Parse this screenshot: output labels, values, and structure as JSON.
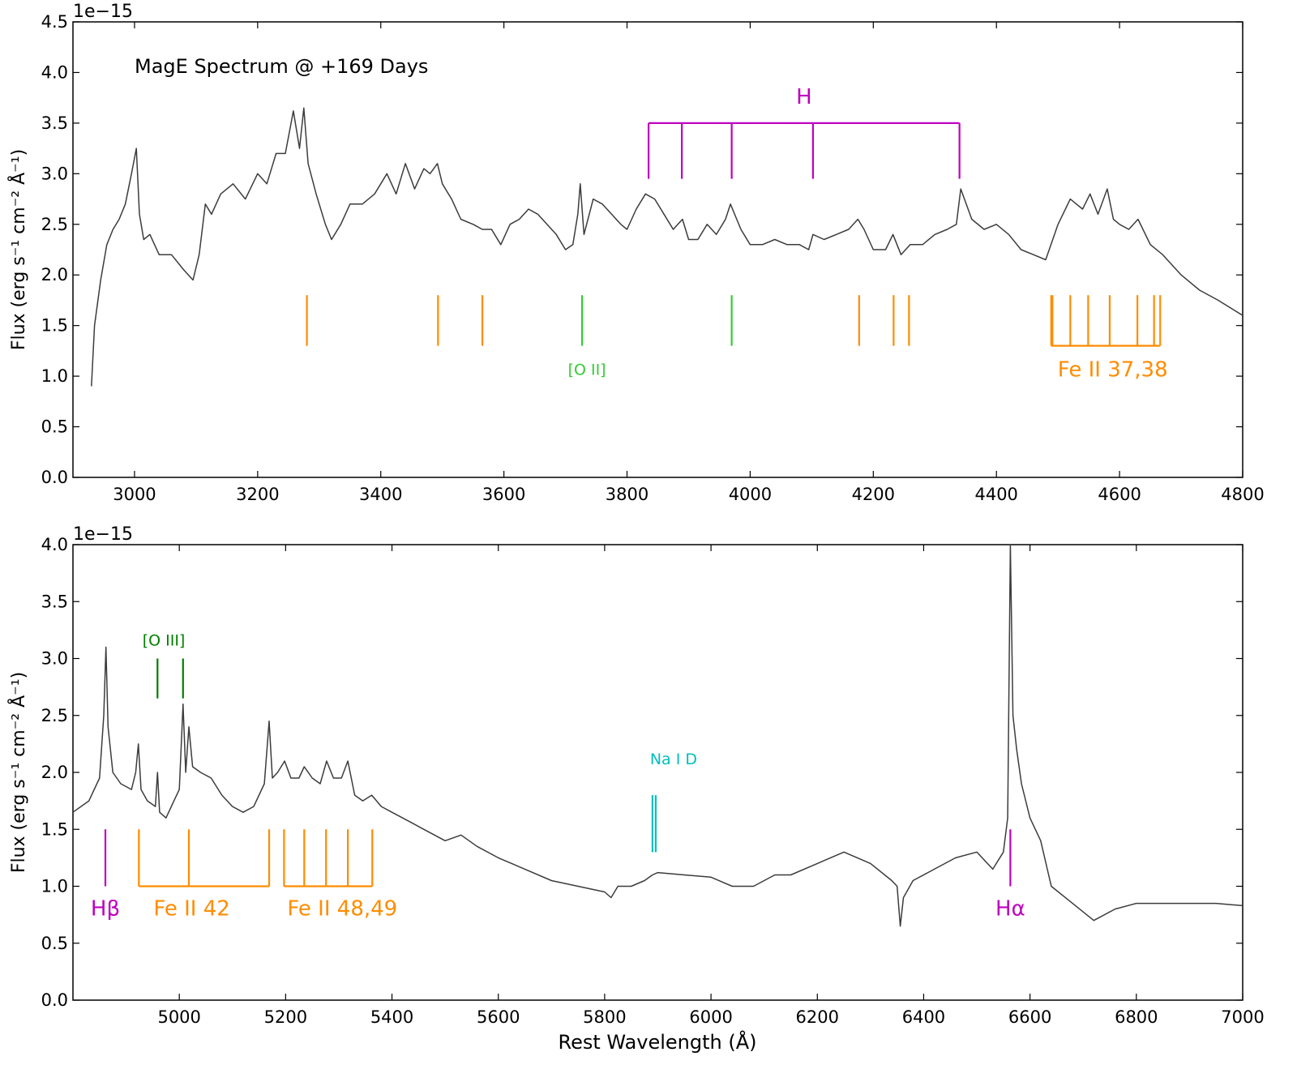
{
  "chart_data": [
    {
      "type": "line",
      "title": "MagE Spectrum @ +169 Days",
      "xlabel": "",
      "ylabel": "Flux (erg s⁻¹ cm⁻² Å⁻¹)",
      "y_scale_label": "1e−15",
      "xlim": [
        2900,
        4800
      ],
      "ylim": [
        0,
        4.5
      ],
      "x_ticks": [
        3000,
        3200,
        3400,
        3600,
        3800,
        4000,
        4200,
        4400,
        4600,
        4800
      ],
      "y_ticks": [
        0.0,
        0.5,
        1.0,
        1.5,
        2.0,
        2.5,
        3.0,
        3.5,
        4.0,
        4.5
      ],
      "series": [
        {
          "name": "spectrum",
          "color": "#3c3c3c",
          "x": [
            2930,
            2935,
            2945,
            2955,
            2965,
            2975,
            2985,
            2995,
            3003,
            3008,
            3015,
            3025,
            3040,
            3060,
            3080,
            3095,
            3105,
            3115,
            3125,
            3140,
            3160,
            3180,
            3200,
            3215,
            3230,
            3245,
            3258,
            3268,
            3275,
            3282,
            3295,
            3310,
            3320,
            3335,
            3350,
            3370,
            3390,
            3410,
            3425,
            3440,
            3455,
            3470,
            3480,
            3492,
            3500,
            3515,
            3530,
            3550,
            3565,
            3580,
            3595,
            3610,
            3625,
            3640,
            3655,
            3670,
            3685,
            3700,
            3712,
            3720,
            3724,
            3730,
            3745,
            3760,
            3775,
            3790,
            3800,
            3815,
            3830,
            3845,
            3860,
            3875,
            3890,
            3900,
            3915,
            3930,
            3945,
            3960,
            3968,
            3985,
            4000,
            4020,
            4040,
            4060,
            4080,
            4095,
            4102,
            4120,
            4140,
            4160,
            4175,
            4185,
            4200,
            4220,
            4232,
            4245,
            4260,
            4280,
            4300,
            4320,
            4335,
            4342,
            4360,
            4380,
            4400,
            4420,
            4440,
            4460,
            4480,
            4500,
            4520,
            4540,
            4552,
            4565,
            4580,
            4590,
            4600,
            4615,
            4630,
            4650,
            4670,
            4700,
            4730,
            4760,
            4800
          ],
          "values": [
            0.9,
            1.5,
            1.95,
            2.3,
            2.45,
            2.55,
            2.7,
            3.0,
            3.25,
            2.6,
            2.35,
            2.4,
            2.2,
            2.2,
            2.05,
            1.95,
            2.2,
            2.7,
            2.6,
            2.8,
            2.9,
            2.75,
            3.0,
            2.9,
            3.2,
            3.2,
            3.62,
            3.25,
            3.65,
            3.1,
            2.8,
            2.5,
            2.35,
            2.5,
            2.7,
            2.7,
            2.8,
            3.0,
            2.8,
            3.1,
            2.85,
            3.05,
            3.0,
            3.1,
            2.9,
            2.75,
            2.55,
            2.5,
            2.45,
            2.45,
            2.3,
            2.5,
            2.55,
            2.65,
            2.6,
            2.5,
            2.4,
            2.25,
            2.3,
            2.6,
            2.9,
            2.4,
            2.75,
            2.7,
            2.6,
            2.5,
            2.45,
            2.65,
            2.8,
            2.75,
            2.6,
            2.45,
            2.55,
            2.35,
            2.35,
            2.5,
            2.4,
            2.55,
            2.7,
            2.45,
            2.3,
            2.3,
            2.35,
            2.3,
            2.3,
            2.25,
            2.4,
            2.35,
            2.4,
            2.45,
            2.55,
            2.45,
            2.25,
            2.25,
            2.4,
            2.2,
            2.3,
            2.3,
            2.4,
            2.45,
            2.5,
            2.85,
            2.55,
            2.45,
            2.5,
            2.4,
            2.25,
            2.2,
            2.15,
            2.5,
            2.75,
            2.65,
            2.8,
            2.6,
            2.85,
            2.55,
            2.5,
            2.45,
            2.55,
            2.3,
            2.2,
            2.0,
            1.85,
            1.75,
            1.6
          ]
        }
      ],
      "annotations": [
        {
          "label": "H",
          "color": "#bf00bf",
          "lines_x": [
            3835,
            3889,
            3970,
            4102,
            4340
          ],
          "y_bottom": 2.95,
          "y_top": 3.5,
          "bracket": "top"
        },
        {
          "label": "",
          "color": "#ff8c00",
          "lines_x": [
            3280,
            3493,
            3565,
            4177,
            4233,
            4258
          ],
          "y_bottom": 1.3,
          "y_top": 1.8
        },
        {
          "label": "[O II]",
          "color": "#33cc33",
          "lines_x": [
            3727,
            3970
          ],
          "y_bottom": 1.3,
          "y_top": 1.8
        },
        {
          "label": "Fe II 37,38",
          "color": "#ff8c00",
          "lines_x": [
            4489,
            4491,
            4520,
            4549,
            4584,
            4629,
            4656,
            4666
          ],
          "y_bottom": 1.3,
          "y_top": 1.8,
          "bracket": "bottom"
        }
      ]
    },
    {
      "type": "line",
      "title": "",
      "xlabel": "Rest Wavelength (Å)",
      "ylabel": "Flux (erg s⁻¹ cm⁻² Å⁻¹)",
      "y_scale_label": "1e−15",
      "xlim": [
        4800,
        7000
      ],
      "ylim": [
        0,
        4.0
      ],
      "x_ticks": [
        5000,
        5200,
        5400,
        5600,
        5800,
        6000,
        6200,
        6400,
        6600,
        6800,
        7000
      ],
      "y_ticks": [
        0.0,
        0.5,
        1.0,
        1.5,
        2.0,
        2.5,
        3.0,
        3.5,
        4.0
      ],
      "series": [
        {
          "name": "spectrum",
          "color": "#3c3c3c",
          "x": [
            4800,
            4830,
            4850,
            4858,
            4862,
            4866,
            4875,
            4890,
            4910,
            4918,
            4923,
            4928,
            4940,
            4955,
            4959,
            4963,
            4975,
            4990,
            5000,
            5007,
            5012,
            5018,
            5025,
            5040,
            5060,
            5080,
            5100,
            5120,
            5140,
            5160,
            5169,
            5175,
            5185,
            5198,
            5210,
            5225,
            5235,
            5250,
            5265,
            5277,
            5290,
            5305,
            5317,
            5330,
            5345,
            5362,
            5380,
            5400,
            5420,
            5440,
            5460,
            5480,
            5500,
            5530,
            5560,
            5600,
            5650,
            5700,
            5750,
            5800,
            5812,
            5825,
            5850,
            5875,
            5890,
            5900,
            5950,
            6000,
            6040,
            6080,
            6120,
            6150,
            6200,
            6250,
            6300,
            6340,
            6350,
            6356,
            6362,
            6380,
            6420,
            6460,
            6500,
            6530,
            6550,
            6558,
            6563,
            6568,
            6575,
            6584,
            6600,
            6620,
            6640,
            6680,
            6720,
            6760,
            6800,
            6850,
            6900,
            6950,
            7000
          ],
          "values": [
            1.65,
            1.75,
            1.95,
            2.5,
            3.1,
            2.4,
            2.0,
            1.9,
            1.85,
            2.0,
            2.25,
            1.85,
            1.75,
            1.7,
            2.0,
            1.65,
            1.6,
            1.75,
            1.85,
            2.6,
            2.0,
            2.4,
            2.05,
            2.0,
            1.95,
            1.8,
            1.7,
            1.65,
            1.7,
            1.9,
            2.45,
            1.95,
            2.0,
            2.1,
            1.95,
            1.95,
            2.05,
            1.95,
            1.9,
            2.1,
            1.95,
            1.95,
            2.1,
            1.8,
            1.75,
            1.8,
            1.7,
            1.65,
            1.6,
            1.55,
            1.5,
            1.45,
            1.4,
            1.45,
            1.35,
            1.25,
            1.15,
            1.05,
            1.0,
            0.95,
            0.9,
            1.0,
            1.0,
            1.05,
            1.1,
            1.12,
            1.1,
            1.08,
            1.0,
            1.0,
            1.1,
            1.1,
            1.2,
            1.3,
            1.2,
            1.05,
            1.0,
            0.65,
            0.9,
            1.05,
            1.15,
            1.25,
            1.3,
            1.15,
            1.3,
            1.6,
            4.0,
            2.5,
            2.2,
            1.9,
            1.6,
            1.4,
            1.0,
            0.85,
            0.7,
            0.8,
            0.85,
            0.85,
            0.85,
            0.85,
            0.83
          ]
        }
      ],
      "annotations": [
        {
          "label": "Hβ",
          "color": "#bf00bf",
          "lines_x": [
            4861
          ],
          "y_bottom": 1.0,
          "y_top": 1.5
        },
        {
          "label": "[O III]",
          "color": "#007f00",
          "lines_x": [
            4959,
            5007
          ],
          "y_bottom": 2.65,
          "y_top": 3.0
        },
        {
          "label": "Fe II 42",
          "color": "#ff8c00",
          "lines_x": [
            4924,
            5018,
            5169
          ],
          "y_bottom": 1.0,
          "y_top": 1.5,
          "bracket": "bottom"
        },
        {
          "label": "Fe II 48,49",
          "color": "#ff8c00",
          "lines_x": [
            5197,
            5235,
            5276,
            5317,
            5363
          ],
          "y_bottom": 1.0,
          "y_top": 1.5,
          "bracket": "bottom"
        },
        {
          "label": "Na I D",
          "color": "#00bfbf",
          "lines_x": [
            5890,
            5896
          ],
          "y_bottom": 1.3,
          "y_top": 1.8
        },
        {
          "label": "Hα",
          "color": "#bf00bf",
          "lines_x": [
            6563
          ],
          "y_bottom": 1.0,
          "y_top": 1.5
        }
      ]
    }
  ]
}
